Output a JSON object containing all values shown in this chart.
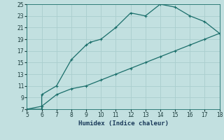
{
  "xlabel": "Humidex (Indice chaleur)",
  "bg_color": "#c2e0e0",
  "line_color": "#1a6e6a",
  "grid_color": "#aacece",
  "upper_x": [
    5,
    6,
    6,
    7,
    8,
    9,
    9.3,
    10,
    11,
    12,
    13,
    14,
    15,
    16,
    17,
    18
  ],
  "upper_y": [
    7,
    7,
    9.5,
    11,
    15.5,
    18,
    18.5,
    19,
    21,
    23.5,
    23,
    25,
    24.5,
    23,
    22,
    20
  ],
  "lower_x": [
    5,
    6,
    7,
    8,
    9,
    10,
    11,
    12,
    13,
    14,
    15,
    16,
    17,
    18
  ],
  "lower_y": [
    7,
    7.5,
    9.5,
    10.5,
    11,
    12,
    13,
    14,
    15,
    16,
    17,
    18,
    19,
    20
  ],
  "xlim": [
    5,
    18
  ],
  "ylim": [
    7,
    25
  ],
  "xticks": [
    5,
    6,
    7,
    8,
    9,
    10,
    11,
    12,
    13,
    14,
    15,
    16,
    17,
    18
  ],
  "yticks": [
    7,
    9,
    11,
    13,
    15,
    17,
    19,
    21,
    23,
    25
  ],
  "tick_fontsize": 5.5,
  "xlabel_fontsize": 6.5
}
